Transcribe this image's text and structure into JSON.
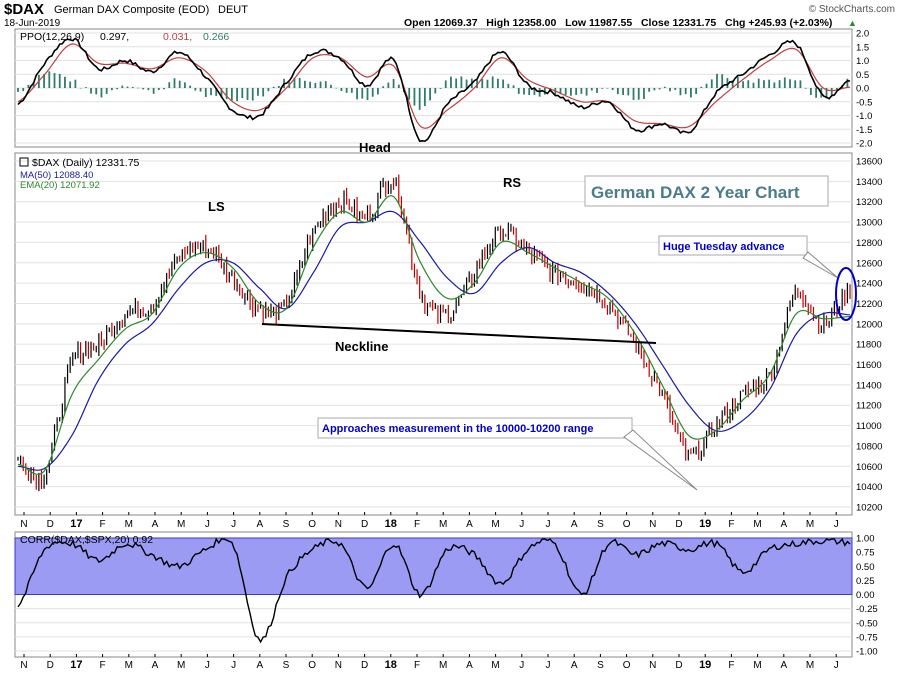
{
  "header": {
    "symbol": "$DAX",
    "name": "German DAX Composite (EOD)",
    "exchange": "DEUT",
    "date": "18-Jun-2019",
    "copyright": "© StockCharts.com",
    "quote": "Open 12069.37   High 12358.00   Low 11987.55   Close 12331.75   Chg +245.93 (+2.03%)",
    "chg_arrow": "▲"
  },
  "colors": {
    "bg": "#ffffff",
    "grid": "#d0d0d0",
    "price_up": "#000000",
    "price_down": "#c00000",
    "ma50": "#1a1aa0",
    "ema20": "#2a8a2a",
    "ppo_line": "#000000",
    "ppo_signal": "#c04040",
    "ppo_hist": "#2e7d6b",
    "corr_fill": "#9b9bf4",
    "corr_line": "#000000",
    "annot_blue": "#0000cc",
    "title_teal": "#4a7d8a"
  },
  "ppo_panel": {
    "label": "PPO(12,26,9)",
    "ppo_value": "0.297,",
    "signal_value": "0.031,",
    "hist_value": "0.266",
    "y_ticks": [
      "2.0",
      "1.5",
      "1.0",
      "0.5",
      "0.0",
      "-0.5",
      "-1.0",
      "-1.5",
      "-2.0"
    ]
  },
  "price_panel": {
    "legend_symbol": "$DAX (Daily) 12331.75",
    "legend_ma": "MA(50) 12088.40",
    "legend_ema": "EMA(20) 12071.92",
    "y_ticks": [
      "13600",
      "13400",
      "13200",
      "13000",
      "12800",
      "12600",
      "12400",
      "12200",
      "12000",
      "11800",
      "11600",
      "11400",
      "11200",
      "11000",
      "10800",
      "10600",
      "10400",
      "10200"
    ],
    "chart_title": "German DAX 2 Year Chart",
    "labels": {
      "ls": "LS",
      "head": "Head",
      "rs": "RS",
      "neckline": "Neckline",
      "huge": "Huge Tuesday advance",
      "approach": "Approaches measurement in the 10000-10200 range"
    }
  },
  "corr_panel": {
    "label": "CORR($DAX,$SPX,20) 0.92",
    "y_ticks": [
      "1.00",
      "0.75",
      "0.50",
      "0.25",
      "0.00",
      "-0.25",
      "-0.50",
      "-0.75",
      "-1.00"
    ]
  },
  "x_axis_labels": [
    "N",
    "D",
    "17",
    "F",
    "M",
    "A",
    "M",
    "J",
    "J",
    "A",
    "S",
    "O",
    "N",
    "D",
    "18",
    "F",
    "M",
    "A",
    "M",
    "J",
    "J",
    "A",
    "S",
    "O",
    "N",
    "D",
    "19",
    "F",
    "M",
    "A",
    "M",
    "J"
  ],
  "chart_data": [
    {
      "type": "line",
      "title": "PPO(12,26,9)",
      "ylim": [
        -2.0,
        2.0
      ],
      "x": [
        "Nov-16",
        "Dec-16",
        "Jan-17",
        "Feb-17",
        "Mar-17",
        "Apr-17",
        "May-17",
        "Jun-17",
        "Jul-17",
        "Aug-17",
        "Sep-17",
        "Oct-17",
        "Nov-17",
        "Dec-17",
        "Jan-18",
        "Feb-18",
        "Mar-18",
        "Apr-18",
        "May-18",
        "Jun-18",
        "Jul-18",
        "Aug-18",
        "Sep-18",
        "Oct-18",
        "Nov-18",
        "Dec-18",
        "Jan-19",
        "Feb-19",
        "Mar-19",
        "Apr-19",
        "May-19",
        "Jun-19"
      ],
      "series": [
        {
          "name": "PPO",
          "values": [
            -0.6,
            0.9,
            1.8,
            0.7,
            1.0,
            0.6,
            1.3,
            0.4,
            -0.8,
            -1.0,
            0.2,
            1.3,
            1.1,
            0.1,
            1.0,
            -1.9,
            -0.6,
            0.2,
            1.3,
            0.1,
            -0.2,
            -0.7,
            -0.5,
            -1.5,
            -1.3,
            -1.6,
            -0.2,
            0.5,
            1.2,
            1.6,
            -0.3,
            0.297
          ]
        },
        {
          "name": "Signal",
          "values": [
            -0.5,
            0.5,
            1.6,
            0.9,
            0.9,
            0.7,
            1.1,
            0.6,
            -0.5,
            -0.8,
            0.0,
            1.1,
            1.1,
            0.4,
            0.8,
            -1.4,
            -0.8,
            0.0,
            1.1,
            0.3,
            -0.1,
            -0.5,
            -0.5,
            -1.2,
            -1.3,
            -1.4,
            -0.5,
            0.3,
            1.0,
            1.4,
            0.0,
            0.031
          ]
        },
        {
          "name": "Histogram",
          "values": [
            -0.1,
            0.4,
            0.2,
            -0.2,
            0.1,
            -0.1,
            0.2,
            -0.2,
            -0.3,
            -0.2,
            0.2,
            0.2,
            0.0,
            -0.3,
            0.2,
            -0.5,
            0.2,
            0.2,
            0.2,
            -0.2,
            -0.1,
            -0.2,
            0.0,
            -0.3,
            0.0,
            -0.2,
            0.3,
            0.2,
            0.2,
            0.2,
            -0.3,
            0.266
          ]
        }
      ]
    },
    {
      "type": "line",
      "title": "$DAX (Daily) 12331.75",
      "ylim": [
        10100,
        13650
      ],
      "x": [
        "Nov-16",
        "Dec-16",
        "Jan-17",
        "Feb-17",
        "Mar-17",
        "Apr-17",
        "May-17",
        "Jun-17",
        "Jul-17",
        "Aug-17",
        "Sep-17",
        "Oct-17",
        "Nov-17",
        "Dec-17",
        "Jan-18",
        "Feb-18",
        "Mar-18",
        "Apr-18",
        "May-18",
        "Jun-18",
        "Jul-18",
        "Aug-18",
        "Sep-18",
        "Oct-18",
        "Nov-18",
        "Dec-18",
        "Jan-19",
        "Feb-19",
        "Mar-19",
        "Apr-19",
        "May-19",
        "Jun-19"
      ],
      "series": [
        {
          "name": "$DAX",
          "values": [
            10650,
            10550,
            11600,
            11800,
            12100,
            12200,
            12650,
            12750,
            12450,
            12150,
            12200,
            12900,
            13200,
            13050,
            13400,
            12300,
            12100,
            12500,
            12900,
            12700,
            12500,
            12400,
            12200,
            11800,
            11300,
            10700,
            11000,
            11300,
            11500,
            12300,
            12000,
            12331.75
          ]
        },
        {
          "name": "MA(50)",
          "values": [
            10600,
            10580,
            10900,
            11450,
            11800,
            12000,
            12350,
            12600,
            12600,
            12350,
            12150,
            12500,
            12950,
            13000,
            13100,
            12800,
            12450,
            12300,
            12600,
            12750,
            12600,
            12500,
            12300,
            12000,
            11600,
            11200,
            10950,
            11050,
            11350,
            11900,
            12100,
            12088.4
          ]
        },
        {
          "name": "EMA(20)",
          "values": [
            10620,
            10560,
            11300,
            11650,
            11950,
            12100,
            12550,
            12700,
            12550,
            12200,
            12150,
            12750,
            13100,
            13000,
            13250,
            12600,
            12250,
            12400,
            12800,
            12700,
            12550,
            12400,
            12250,
            11900,
            11400,
            10900,
            10950,
            11250,
            11500,
            12100,
            12050,
            12071.92
          ]
        }
      ]
    },
    {
      "type": "area",
      "title": "CORR($DAX,$SPX,20) 0.92",
      "ylim": [
        -1.0,
        1.0
      ],
      "x": [
        "Nov-16",
        "Dec-16",
        "Jan-17",
        "Feb-17",
        "Mar-17",
        "Apr-17",
        "May-17",
        "Jun-17",
        "Jul-17",
        "Aug-17",
        "Sep-17",
        "Oct-17",
        "Nov-17",
        "Dec-17",
        "Jan-18",
        "Feb-18",
        "Mar-18",
        "Apr-18",
        "May-18",
        "Jun-18",
        "Jul-18",
        "Aug-18",
        "Sep-18",
        "Oct-18",
        "Nov-18",
        "Dec-18",
        "Jan-19",
        "Feb-19",
        "Mar-19",
        "Apr-19",
        "May-19",
        "Jun-19"
      ],
      "series": [
        {
          "name": "CORR",
          "values": [
            -0.2,
            0.8,
            0.9,
            0.6,
            0.9,
            0.7,
            0.5,
            0.8,
            0.9,
            -0.8,
            0.3,
            0.8,
            0.9,
            0.1,
            0.9,
            0.0,
            0.8,
            0.7,
            0.2,
            0.8,
            0.9,
            0.0,
            0.9,
            0.7,
            0.9,
            0.8,
            0.9,
            0.4,
            0.8,
            0.9,
            0.95,
            0.92
          ]
        }
      ]
    }
  ]
}
